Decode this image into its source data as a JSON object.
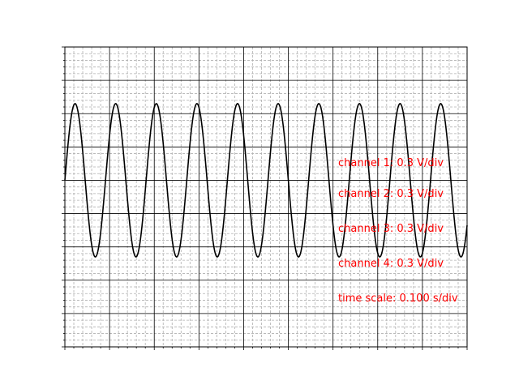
{
  "chart_data": {
    "type": "line",
    "title": "",
    "xlabel": "",
    "ylabel": "",
    "xlim": [
      0,
      0.9
    ],
    "ylim": [
      -5,
      4
    ],
    "xtick_values": [
      0,
      0.1,
      0.2,
      0.3,
      0.4,
      0.5,
      0.6,
      0.7,
      0.8,
      0.9
    ],
    "ytick_values": [
      -5,
      -4,
      -3,
      -2,
      -1,
      0,
      1,
      2,
      3,
      4
    ],
    "minor_per_major": 5,
    "grid": true,
    "tick_labels_visible": false,
    "series": [
      {
        "color": "#000000",
        "waveform": "sine",
        "amplitude": 2.3,
        "offset": 0,
        "frequency_hz": 11,
        "phase_rad": 0
      }
    ],
    "annotations": [
      "channel 1: 0.3 V/div",
      "channel 2: 0.3 V/div",
      "channel 3: 0.3 V/div",
      "channel 4: 0.3 V/div",
      "time scale: 0.100 s/div"
    ],
    "colors": {
      "annotation": "#ff0000",
      "major_grid": "#000000",
      "minor_grid": "#b0b0b0",
      "trace": "#000000"
    }
  }
}
